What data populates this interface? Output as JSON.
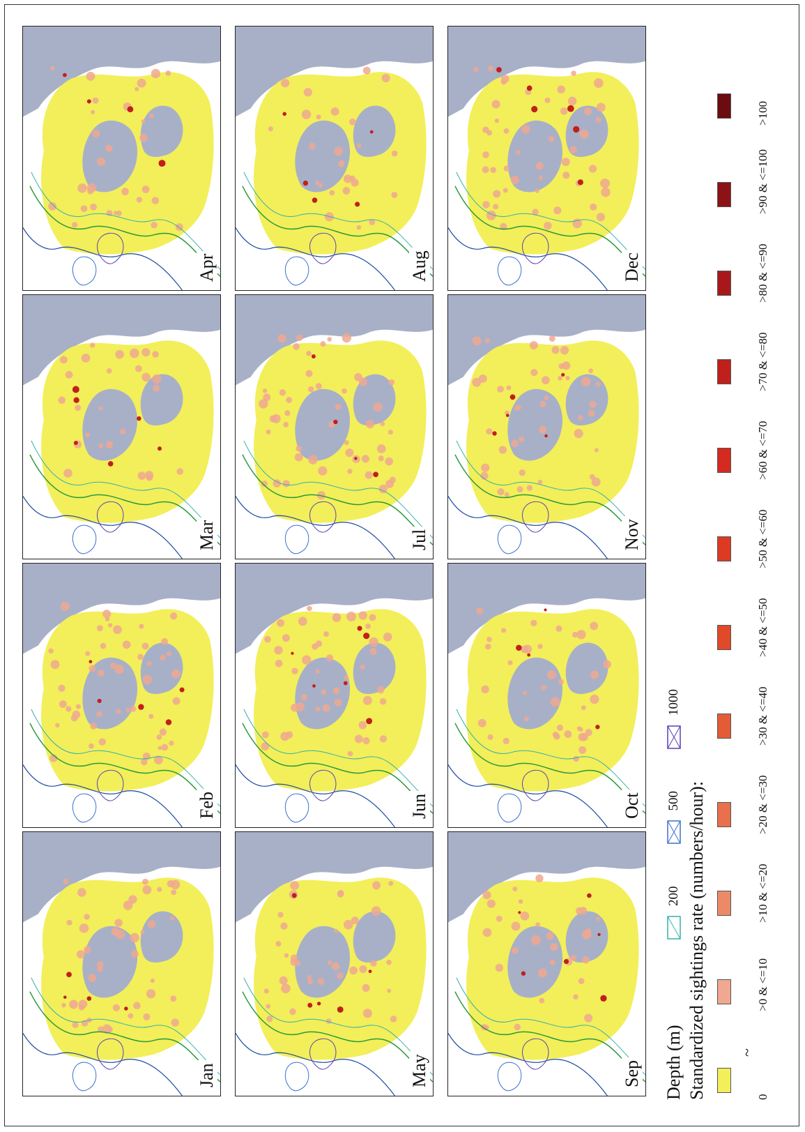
{
  "panels": [
    {
      "month": "Jan"
    },
    {
      "month": "Feb"
    },
    {
      "month": "Mar"
    },
    {
      "month": "Apr"
    },
    {
      "month": "May"
    },
    {
      "month": "Jun"
    },
    {
      "month": "Jul"
    },
    {
      "month": "Aug"
    },
    {
      "month": "Sep"
    },
    {
      "month": "Oct"
    },
    {
      "month": "Nov"
    },
    {
      "month": "Dec"
    }
  ],
  "legend": {
    "depth_title": "Depth (m)",
    "depth_levels": [
      {
        "label": "200",
        "color": "#35b0a8"
      },
      {
        "label": "500",
        "color": "#3a6fd0"
      },
      {
        "label": "1000",
        "color": "#5a3fb5"
      }
    ],
    "rate_title": "Standardized sightings rate (numbers/hour):",
    "tilde": "~",
    "rate_classes": [
      {
        "label": "0",
        "color": "#f2ef5a"
      },
      {
        "label": ">0 & <=10",
        "color": "#f0a890"
      },
      {
        "label": ">10 & <=20",
        "color": "#ec8a68"
      },
      {
        "label": ">20 & <=30",
        "color": "#e8704c"
      },
      {
        "label": ">30 & <=40",
        "color": "#e45c36"
      },
      {
        "label": ">40 & <=50",
        "color": "#e04a28"
      },
      {
        "label": ">50 & <=60",
        "color": "#dc3a22"
      },
      {
        "label": ">60 & <=70",
        "color": "#d42a20"
      },
      {
        "label": ">70 & <=80",
        "color": "#c0201c"
      },
      {
        "label": ">80 & <=90",
        "color": "#a8181a"
      },
      {
        "label": ">90 & <=100",
        "color": "#8c1216"
      },
      {
        "label": ">100",
        "color": "#6a0c10"
      }
    ]
  },
  "colors": {
    "land": "#a8b0c8",
    "ice": "#ffffff",
    "zero_rate": "#f2ef5a",
    "coast": "#1a4aa0",
    "depth200": "#35b0a8",
    "depth500": "#3a6fd0",
    "depth1000": "#5a3fb5",
    "green_contour": "#2a9a3a"
  }
}
